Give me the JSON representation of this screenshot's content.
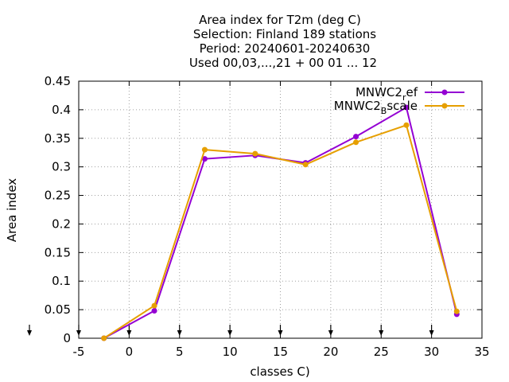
{
  "chart_data": {
    "type": "line",
    "title_lines": [
      "Area index  for T2m (deg C)",
      "Selection: Finland    189 stations",
      "Period: 20240601-20240630",
      "Used 00,03,...,21 + 00 01 ... 12"
    ],
    "xlabel": "classes C)",
    "ylabel": "Area index",
    "xlim": [
      -5,
      35
    ],
    "ylim": [
      0,
      0.45
    ],
    "x_ticks": [
      -5,
      0,
      5,
      10,
      15,
      20,
      25,
      30,
      35
    ],
    "y_ticks": [
      0,
      0.05,
      0.1,
      0.15,
      0.2,
      0.25,
      0.3,
      0.35,
      0.4,
      0.45
    ],
    "x_tick_labels": [
      "-5",
      "0",
      "5",
      "10",
      "15",
      "20",
      "25",
      "30",
      "35"
    ],
    "y_tick_labels": [
      "0",
      "0.05",
      "0.1",
      "0.15",
      "0.2",
      "0.25",
      "0.3",
      "0.35",
      "0.4",
      "0.45"
    ],
    "grid": true,
    "legend_position": "top-right",
    "x": [
      -2.5,
      2.5,
      7.5,
      12.5,
      17.5,
      22.5,
      27.5,
      32.5
    ],
    "series": [
      {
        "name": "MNWC2_ref",
        "legend_main": "MNWC2",
        "legend_sub": "r",
        "legend_tail": "ef",
        "color": "#9400d3",
        "values": [
          0.0,
          0.048,
          0.314,
          0.32,
          0.307,
          0.353,
          0.404,
          0.042
        ]
      },
      {
        "name": "MNWC2_Bscale",
        "legend_main": "MNWC2",
        "legend_sub": "B",
        "legend_tail": "scale",
        "color": "#e69f00",
        "values": [
          0.0,
          0.057,
          0.33,
          0.323,
          0.304,
          0.343,
          0.373,
          0.047
        ]
      }
    ],
    "observation_arrows_x": [
      -5,
      0,
      5,
      10,
      15,
      20,
      25,
      30
    ]
  }
}
